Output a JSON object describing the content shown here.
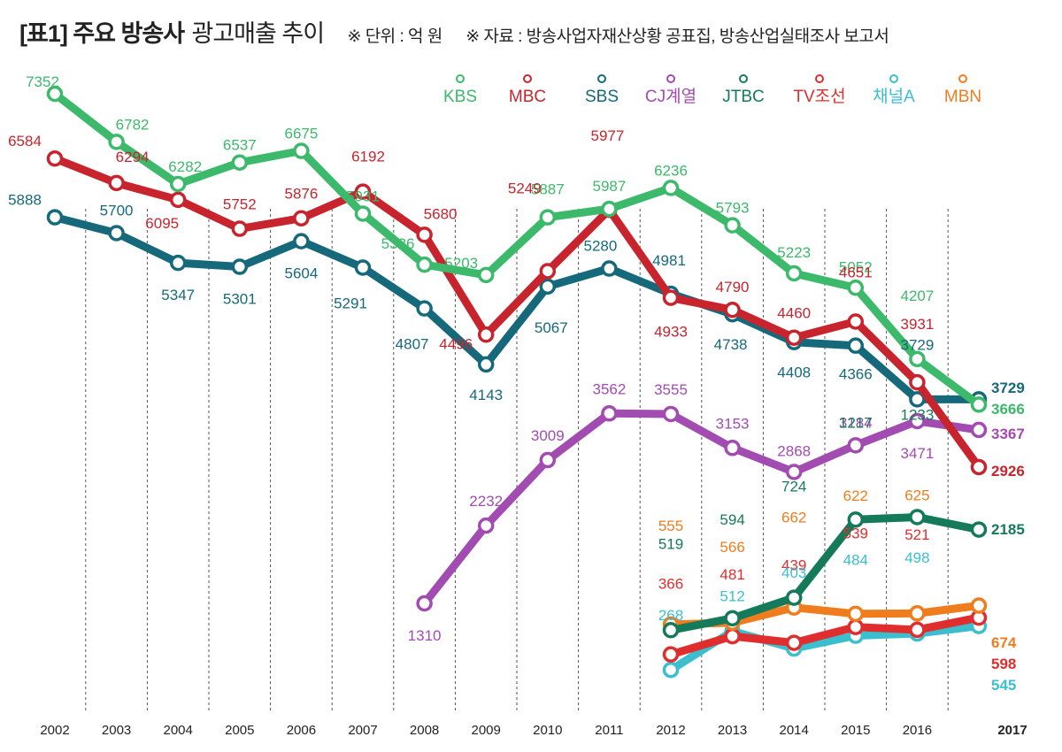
{
  "header": {
    "title": "[표1] 주요 방송사",
    "subtitle": "광고매출 추이",
    "unit_note": "※ 단위 : 억 원",
    "source_note": "※ 자료 : 방송사업자재산상황 공표집, 방송산업실태조사 보고서"
  },
  "colors": {
    "KBS": "#3cb96a",
    "MBC": "#c8242d",
    "SBS": "#16697a",
    "CJ계열": "#a24bb0",
    "JTBC": "#157a5a",
    "TV조선": "#e02d2d",
    "채널A": "#3bbfcf",
    "MBN": "#ef7d1e"
  },
  "chart_data": {
    "type": "line",
    "title": "주요 방송사 광고매출 추이",
    "unit": "억 원",
    "x": [
      "2002",
      "2003",
      "2004",
      "2005",
      "2006",
      "2007",
      "2008",
      "2009",
      "2010",
      "2011",
      "2012",
      "2013",
      "2014",
      "2015",
      "2016",
      "2017"
    ],
    "legend": [
      "KBS",
      "MBC",
      "SBS",
      "CJ계열",
      "JTBC",
      "TV조선",
      "채널A",
      "MBN"
    ],
    "legend_position": "top-right",
    "series": [
      {
        "name": "KBS",
        "values": [
          7352,
          6782,
          6282,
          6537,
          6675,
          5931,
          5326,
          5203,
          5887,
          5987,
          6236,
          5793,
          5223,
          5052,
          4207,
          3666
        ]
      },
      {
        "name": "MBC",
        "values": [
          6584,
          6294,
          6095,
          5752,
          5876,
          6192,
          5680,
          4496,
          5249,
          5977,
          4933,
          4790,
          4460,
          4651,
          3931,
          2926
        ]
      },
      {
        "name": "SBS",
        "values": [
          5888,
          5700,
          5347,
          5301,
          5604,
          5291,
          4807,
          4143,
          5067,
          5280,
          4981,
          4738,
          4408,
          4366,
          3729,
          3729
        ]
      },
      {
        "name": "CJ계열",
        "values": [
          null,
          null,
          null,
          null,
          null,
          null,
          1310,
          2232,
          3009,
          3562,
          3555,
          3153,
          2868,
          3184,
          3471,
          3367
        ]
      },
      {
        "name": "JTBC",
        "values": [
          null,
          null,
          null,
          null,
          null,
          null,
          null,
          null,
          null,
          null,
          519,
          594,
          724,
          1217,
          1233,
          2185
        ]
      },
      {
        "name": "TV조선",
        "values": [
          null,
          null,
          null,
          null,
          null,
          null,
          null,
          null,
          null,
          null,
          366,
          481,
          439,
          539,
          521,
          598
        ]
      },
      {
        "name": "채널A",
        "values": [
          null,
          null,
          null,
          null,
          null,
          null,
          null,
          null,
          null,
          null,
          268,
          512,
          403,
          484,
          498,
          545
        ]
      },
      {
        "name": "MBN",
        "values": [
          null,
          null,
          null,
          null,
          null,
          null,
          null,
          null,
          null,
          null,
          555,
          566,
          662,
          622,
          625,
          674
        ]
      }
    ]
  }
}
